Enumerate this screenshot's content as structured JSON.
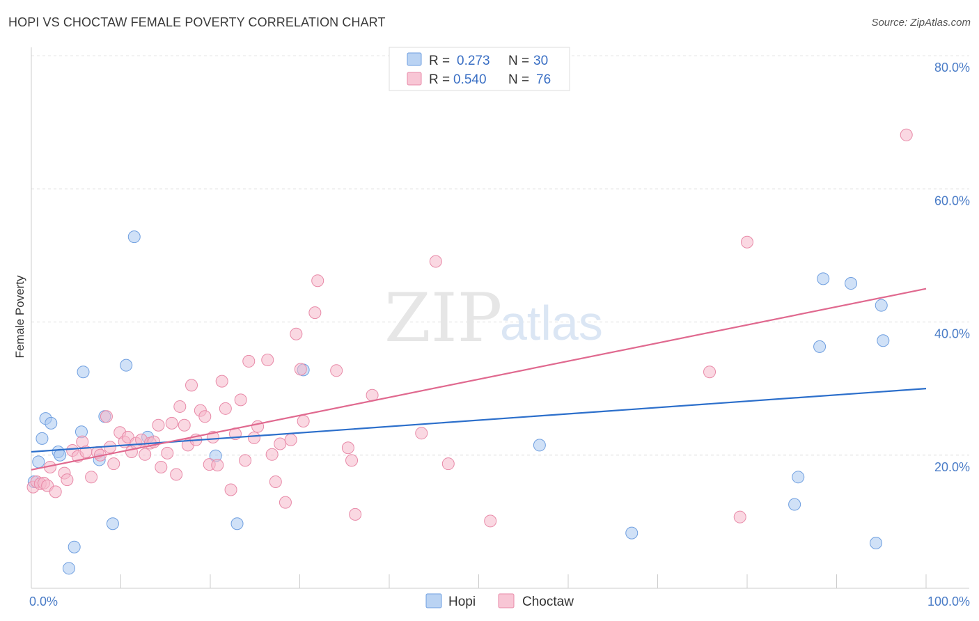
{
  "title": "HOPI VS CHOCTAW FEMALE POVERTY CORRELATION CHART",
  "source": "Source: ZipAtlas.com",
  "watermark": {
    "zip": "ZIP",
    "atlas": "atlas"
  },
  "chart_data": {
    "type": "scatter",
    "xlabel": "",
    "ylabel": "Female Poverty",
    "xlim": [
      0,
      100
    ],
    "ylim": [
      0,
      80
    ],
    "x_tick_labels": [
      "0.0%",
      "100.0%"
    ],
    "y_ticks": [
      20,
      40,
      60,
      80
    ],
    "y_tick_labels": [
      "20.0%",
      "40.0%",
      "60.0%",
      "80.0%"
    ],
    "grid": "horizontal dashed",
    "legend_top": [
      {
        "r_label": "R =",
        "r": "0.273",
        "n_label": "N =",
        "n": "30",
        "color": "#a9c8f0",
        "stroke": "#6f9fe0"
      },
      {
        "r_label": "R =",
        "r": "0.540",
        "n_label": "N =",
        "n": "76",
        "color": "#f6b8cb",
        "stroke": "#e88aa8"
      }
    ],
    "series": [
      {
        "name": "Hopi",
        "color": "#a9c8f0",
        "stroke": "#6f9fe0",
        "line_color": "#2c6fcb",
        "trend": [
          [
            0,
            20.5
          ],
          [
            100,
            30.0
          ]
        ],
        "points": [
          [
            0.3,
            16.0
          ],
          [
            0.8,
            19.0
          ],
          [
            1.2,
            22.5
          ],
          [
            1.6,
            25.5
          ],
          [
            2.2,
            24.8
          ],
          [
            3.0,
            20.5
          ],
          [
            3.2,
            20.0
          ],
          [
            4.2,
            3.0
          ],
          [
            4.8,
            6.2
          ],
          [
            5.6,
            23.5
          ],
          [
            5.8,
            32.5
          ],
          [
            7.6,
            19.3
          ],
          [
            8.2,
            25.8
          ],
          [
            9.1,
            9.7
          ],
          [
            10.6,
            33.5
          ],
          [
            11.5,
            52.8
          ],
          [
            13.0,
            22.7
          ],
          [
            20.6,
            19.9
          ],
          [
            23.0,
            9.7
          ],
          [
            30.4,
            32.8
          ],
          [
            56.8,
            21.5
          ],
          [
            67.1,
            8.3
          ],
          [
            85.3,
            12.6
          ],
          [
            85.7,
            16.7
          ],
          [
            88.1,
            36.3
          ],
          [
            88.5,
            46.5
          ],
          [
            91.6,
            45.8
          ],
          [
            94.4,
            6.8
          ],
          [
            95.0,
            42.5
          ],
          [
            95.2,
            37.2
          ]
        ]
      },
      {
        "name": "Choctaw",
        "color": "#f6b8cb",
        "stroke": "#e88aa8",
        "line_color": "#e0698f",
        "trend": [
          [
            0,
            17.8
          ],
          [
            100,
            45.0
          ]
        ],
        "points": [
          [
            0.2,
            15.2
          ],
          [
            0.6,
            16.0
          ],
          [
            1.0,
            15.7
          ],
          [
            1.4,
            15.8
          ],
          [
            1.8,
            15.4
          ],
          [
            2.1,
            18.2
          ],
          [
            2.7,
            14.5
          ],
          [
            3.7,
            17.3
          ],
          [
            4.0,
            16.3
          ],
          [
            4.6,
            20.7
          ],
          [
            5.2,
            19.8
          ],
          [
            5.7,
            22.0
          ],
          [
            6.1,
            20.5
          ],
          [
            6.7,
            16.7
          ],
          [
            7.4,
            20.4
          ],
          [
            7.7,
            20.0
          ],
          [
            8.4,
            25.8
          ],
          [
            8.8,
            21.2
          ],
          [
            9.2,
            18.7
          ],
          [
            9.9,
            23.4
          ],
          [
            10.4,
            22.0
          ],
          [
            10.8,
            22.7
          ],
          [
            11.2,
            20.5
          ],
          [
            11.7,
            21.8
          ],
          [
            12.3,
            22.3
          ],
          [
            12.7,
            20.1
          ],
          [
            13.3,
            21.8
          ],
          [
            13.7,
            22.0
          ],
          [
            14.2,
            24.5
          ],
          [
            14.5,
            18.2
          ],
          [
            15.2,
            20.3
          ],
          [
            15.7,
            24.8
          ],
          [
            16.2,
            17.1
          ],
          [
            16.6,
            27.3
          ],
          [
            17.1,
            24.5
          ],
          [
            17.5,
            21.5
          ],
          [
            17.9,
            30.5
          ],
          [
            18.4,
            22.3
          ],
          [
            18.9,
            26.7
          ],
          [
            19.4,
            25.8
          ],
          [
            19.9,
            18.6
          ],
          [
            20.3,
            22.7
          ],
          [
            20.8,
            18.5
          ],
          [
            21.3,
            31.1
          ],
          [
            21.7,
            27.0
          ],
          [
            22.3,
            14.8
          ],
          [
            22.8,
            23.2
          ],
          [
            23.4,
            28.3
          ],
          [
            23.9,
            19.2
          ],
          [
            24.3,
            34.1
          ],
          [
            24.9,
            22.6
          ],
          [
            25.3,
            24.3
          ],
          [
            26.4,
            34.3
          ],
          [
            26.9,
            20.1
          ],
          [
            27.3,
            16.0
          ],
          [
            27.8,
            21.7
          ],
          [
            28.4,
            12.9
          ],
          [
            29.0,
            22.3
          ],
          [
            29.6,
            38.2
          ],
          [
            30.1,
            32.9
          ],
          [
            30.4,
            25.1
          ],
          [
            31.7,
            41.4
          ],
          [
            32.0,
            46.2
          ],
          [
            34.1,
            32.7
          ],
          [
            35.4,
            21.1
          ],
          [
            35.8,
            19.2
          ],
          [
            36.2,
            11.1
          ],
          [
            38.1,
            29.0
          ],
          [
            43.6,
            23.3
          ],
          [
            45.2,
            49.1
          ],
          [
            46.6,
            18.7
          ],
          [
            51.3,
            10.1
          ],
          [
            75.8,
            32.5
          ],
          [
            79.2,
            10.7
          ],
          [
            80.0,
            52.0
          ],
          [
            97.8,
            68.1
          ]
        ]
      }
    ]
  }
}
